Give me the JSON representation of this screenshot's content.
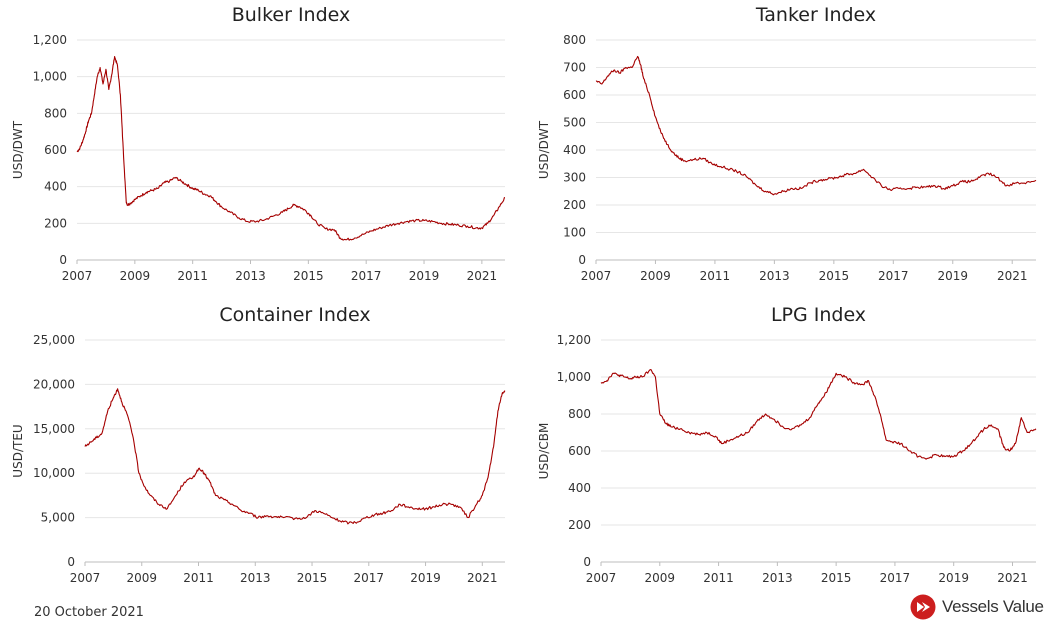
{
  "footer": {
    "date": "20 October 2021"
  },
  "logo": {
    "text": "Vessels Value",
    "icon": "vesselsvalue-logo-icon"
  },
  "colors": {
    "line": "#a50000",
    "grid": "#e6e6e6",
    "text": "#333333",
    "title": "#222222",
    "logo_red": "#cc1e1e"
  },
  "chart_data": [
    {
      "type": "line",
      "title": "Bulker Index",
      "ylabel": "USD/DWT",
      "xlim": [
        2007,
        2021.8
      ],
      "ylim": [
        0,
        1200
      ],
      "xticks": [
        "2007",
        "2009",
        "2011",
        "2013",
        "2015",
        "2017",
        "2019",
        "2021"
      ],
      "yticks": [
        "0",
        "200",
        "400",
        "600",
        "800",
        "1,000",
        "1,200"
      ],
      "grid": true,
      "series": [
        {
          "x": [
            2007.0,
            2007.1,
            2007.2,
            2007.3,
            2007.4,
            2007.5,
            2007.6,
            2007.7,
            2007.8,
            2007.9,
            2008.0,
            2008.1,
            2008.2,
            2008.3,
            2008.4,
            2008.5,
            2008.6,
            2008.7,
            2008.75,
            2008.85,
            2009.0,
            2009.2,
            2009.4,
            2009.6,
            2009.8,
            2010.0,
            2010.2,
            2010.4,
            2010.6,
            2010.8,
            2011.0,
            2011.2,
            2011.4,
            2011.6,
            2011.8,
            2012.0,
            2012.3,
            2012.6,
            2012.9,
            2013.2,
            2013.5,
            2013.8,
            2014.1,
            2014.3,
            2014.5,
            2014.7,
            2014.9,
            2015.1,
            2015.3,
            2015.6,
            2015.9,
            2016.1,
            2016.3,
            2016.6,
            2016.9,
            2017.2,
            2017.5,
            2017.8,
            2018.1,
            2018.4,
            2018.7,
            2019.0,
            2019.3,
            2019.6,
            2019.9,
            2020.2,
            2020.5,
            2020.8,
            2021.0,
            2021.2,
            2021.4,
            2021.6,
            2021.8
          ],
          "y": [
            590,
            610,
            650,
            700,
            760,
            800,
            900,
            1000,
            1050,
            960,
            1040,
            930,
            1010,
            1110,
            1060,
            900,
            600,
            320,
            300,
            310,
            330,
            350,
            370,
            380,
            390,
            420,
            430,
            450,
            430,
            410,
            390,
            380,
            360,
            350,
            320,
            290,
            260,
            230,
            210,
            210,
            220,
            240,
            260,
            280,
            300,
            290,
            270,
            240,
            200,
            170,
            165,
            120,
            110,
            120,
            140,
            160,
            175,
            190,
            200,
            210,
            215,
            215,
            210,
            200,
            195,
            190,
            185,
            175,
            175,
            200,
            240,
            290,
            340
          ]
        }
      ]
    },
    {
      "type": "line",
      "title": "Tanker Index",
      "ylabel": "USD/DWT",
      "xlim": [
        2007,
        2021.8
      ],
      "ylim": [
        0,
        800
      ],
      "xticks": [
        "2007",
        "2009",
        "2011",
        "2013",
        "2015",
        "2017",
        "2019",
        "2021"
      ],
      "yticks": [
        "0",
        "100",
        "200",
        "300",
        "400",
        "500",
        "600",
        "700",
        "800"
      ],
      "grid": true,
      "series": [
        {
          "x": [
            2007.0,
            2007.2,
            2007.4,
            2007.6,
            2007.8,
            2008.0,
            2008.2,
            2008.4,
            2008.5,
            2008.6,
            2008.8,
            2009.0,
            2009.2,
            2009.4,
            2009.6,
            2009.8,
            2010.0,
            2010.3,
            2010.6,
            2010.9,
            2011.2,
            2011.5,
            2011.8,
            2012.1,
            2012.4,
            2012.7,
            2013.0,
            2013.3,
            2013.6,
            2013.9,
            2014.2,
            2014.5,
            2014.8,
            2015.1,
            2015.4,
            2015.7,
            2016.0,
            2016.3,
            2016.6,
            2016.9,
            2017.2,
            2017.5,
            2017.8,
            2018.1,
            2018.4,
            2018.7,
            2019.0,
            2019.3,
            2019.6,
            2019.9,
            2020.2,
            2020.5,
            2020.8,
            2021.1,
            2021.4,
            2021.8
          ],
          "y": [
            650,
            640,
            670,
            690,
            680,
            700,
            700,
            740,
            710,
            660,
            600,
            520,
            460,
            420,
            390,
            370,
            360,
            365,
            370,
            350,
            340,
            330,
            320,
            300,
            270,
            250,
            240,
            250,
            260,
            260,
            280,
            290,
            295,
            300,
            310,
            315,
            330,
            300,
            270,
            255,
            260,
            260,
            265,
            265,
            270,
            260,
            270,
            285,
            285,
            300,
            315,
            300,
            270,
            280,
            280,
            290
          ]
        }
      ]
    },
    {
      "type": "line",
      "title": "Container Index",
      "ylabel": "USD/TEU",
      "xlim": [
        2007,
        2021.8
      ],
      "ylim": [
        0,
        25000
      ],
      "xticks": [
        "2007",
        "2009",
        "2011",
        "2013",
        "2015",
        "2017",
        "2019",
        "2021"
      ],
      "yticks": [
        "0",
        "5,000",
        "10,000",
        "15,000",
        "20,000",
        "25,000"
      ],
      "grid": true,
      "series": [
        {
          "x": [
            2007.0,
            2007.2,
            2007.4,
            2007.6,
            2007.8,
            2008.0,
            2008.15,
            2008.3,
            2008.5,
            2008.7,
            2008.9,
            2009.1,
            2009.3,
            2009.6,
            2009.9,
            2010.2,
            2010.5,
            2010.8,
            2011.0,
            2011.2,
            2011.4,
            2011.6,
            2011.9,
            2012.2,
            2012.5,
            2012.8,
            2013.1,
            2013.4,
            2013.7,
            2014.0,
            2014.4,
            2014.8,
            2015.1,
            2015.4,
            2015.7,
            2016.0,
            2016.3,
            2016.6,
            2016.9,
            2017.2,
            2017.5,
            2017.8,
            2018.1,
            2018.4,
            2018.7,
            2019.0,
            2019.3,
            2019.6,
            2019.9,
            2020.2,
            2020.5,
            2020.8,
            2021.0,
            2021.2,
            2021.4,
            2021.55,
            2021.7,
            2021.8
          ],
          "y": [
            13000,
            13500,
            14000,
            14500,
            17000,
            18500,
            19500,
            18000,
            16500,
            14000,
            10000,
            8500,
            7500,
            6500,
            6000,
            7500,
            9000,
            9500,
            10500,
            10000,
            9000,
            7500,
            7000,
            6500,
            5800,
            5500,
            5000,
            5200,
            5100,
            5000,
            4900,
            5000,
            5800,
            5500,
            5000,
            4600,
            4400,
            4500,
            5000,
            5300,
            5500,
            5800,
            6500,
            6200,
            6000,
            6000,
            6200,
            6500,
            6500,
            6200,
            5000,
            6500,
            7500,
            9500,
            13000,
            17000,
            19000,
            19300
          ]
        }
      ]
    },
    {
      "type": "line",
      "title": "LPG Index",
      "ylabel": "USD/CBM",
      "xlim": [
        2007,
        2021.8
      ],
      "ylim": [
        0,
        1200
      ],
      "xticks": [
        "2007",
        "2009",
        "2011",
        "2013",
        "2015",
        "2017",
        "2019",
        "2021"
      ],
      "yticks": [
        "0",
        "200",
        "400",
        "600",
        "800",
        "1,000",
        "1,200"
      ],
      "grid": true,
      "series": [
        {
          "x": [
            2007.0,
            2007.2,
            2007.4,
            2007.6,
            2007.8,
            2008.0,
            2008.2,
            2008.4,
            2008.7,
            2008.85,
            2009.0,
            2009.2,
            2009.4,
            2009.7,
            2010.0,
            2010.3,
            2010.6,
            2010.9,
            2011.1,
            2011.4,
            2011.7,
            2012.0,
            2012.3,
            2012.6,
            2012.9,
            2013.2,
            2013.5,
            2013.8,
            2014.1,
            2014.4,
            2014.6,
            2014.8,
            2015.0,
            2015.3,
            2015.6,
            2015.9,
            2016.1,
            2016.3,
            2016.5,
            2016.7,
            2016.9,
            2017.2,
            2017.5,
            2017.8,
            2018.1,
            2018.4,
            2018.7,
            2019.0,
            2019.3,
            2019.6,
            2019.9,
            2020.2,
            2020.5,
            2020.7,
            2020.9,
            2021.1,
            2021.3,
            2021.5,
            2021.8
          ],
          "y": [
            970,
            980,
            1020,
            1010,
            1000,
            990,
            1000,
            1000,
            1040,
            1000,
            800,
            750,
            730,
            720,
            700,
            690,
            700,
            680,
            640,
            660,
            680,
            700,
            760,
            800,
            770,
            730,
            720,
            740,
            780,
            860,
            900,
            960,
            1020,
            1000,
            970,
            960,
            980,
            900,
            800,
            660,
            650,
            640,
            600,
            570,
            560,
            580,
            570,
            570,
            600,
            640,
            700,
            740,
            720,
            620,
            600,
            640,
            780,
            700,
            720
          ]
        }
      ]
    }
  ]
}
